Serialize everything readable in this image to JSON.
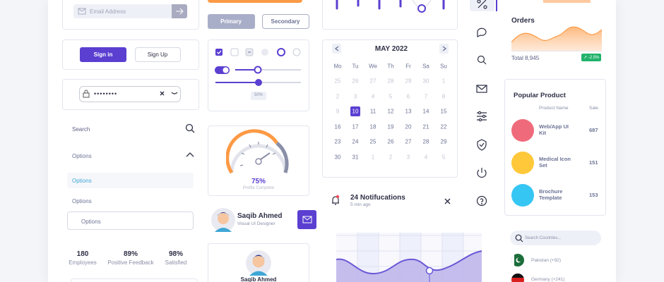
{
  "email": {
    "placeholder": "Email Address"
  },
  "buttons": {
    "primary": "Primary",
    "secondary": "Secondary"
  },
  "auth": {
    "sign_in": "Sign in",
    "sign_up": "Sign Up"
  },
  "password": {
    "masked": "••••••••"
  },
  "search": {
    "placeholder": "Search"
  },
  "options": [
    "Options",
    "Options",
    "Options",
    "Options"
  ],
  "stats": [
    {
      "value": "180",
      "label": "Employees"
    },
    {
      "value": "89%",
      "label": "Positive Feedback"
    },
    {
      "value": "98%",
      "label": "Satisfied"
    }
  ],
  "controls": {
    "slider_value": "50%"
  },
  "gauge": {
    "value": "75%",
    "label": "Profile Complete"
  },
  "profile": {
    "name": "Saqib Ahmed",
    "role": "Visual UI Designer"
  },
  "calendar": {
    "title": "MAY 2022",
    "weekdays": [
      "Mo",
      "Tu",
      "We",
      "Th",
      "Fr",
      "Sa",
      "Su"
    ],
    "days": [
      [
        25,
        26,
        27,
        28,
        29,
        30,
        1
      ],
      [
        2,
        3,
        4,
        5,
        6,
        7,
        8
      ],
      [
        9,
        10,
        11,
        12,
        13,
        14,
        15
      ],
      [
        16,
        17,
        18,
        19,
        20,
        21,
        22
      ],
      [
        23,
        24,
        25,
        26,
        27,
        28,
        29
      ],
      [
        30,
        31,
        1,
        2,
        3,
        4,
        5
      ]
    ]
  },
  "notification": {
    "title": "24 Notifucations",
    "time": "5 min ago"
  },
  "orders": {
    "title": "Orders",
    "total": "Total 8,945",
    "change": "↗ -2.5%"
  },
  "products": {
    "title": "Popular Product",
    "columns": [
      "Product Name",
      "Sale"
    ],
    "items": [
      {
        "name": "Web/App UI Kit",
        "sale": 687
      },
      {
        "name": "Medical Icon Set",
        "sale": 151
      },
      {
        "name": "Brochure Template",
        "sale": 153
      }
    ]
  },
  "countries": {
    "placeholder": "Search Countries...",
    "items": [
      "Pakistan (+92)",
      "Germany (+241)"
    ]
  }
}
